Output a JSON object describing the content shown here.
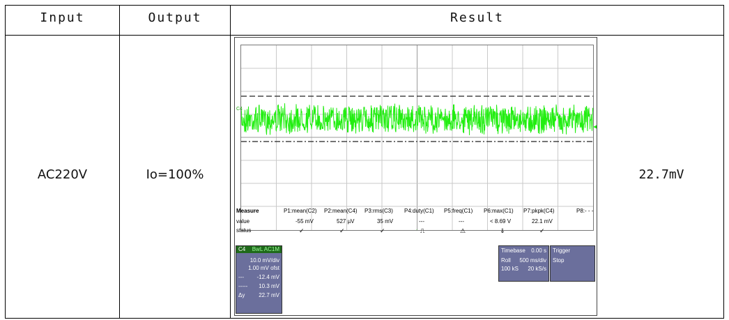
{
  "headers": {
    "input": "Input",
    "output": "Output",
    "result": "Result"
  },
  "row": {
    "input": "AC220V",
    "output": "Io=100%",
    "result": "22.7mV"
  },
  "scope": {
    "channel_tag": "C4",
    "measure": {
      "label": "Measure",
      "params": [
        "P1:mean(C2)",
        "P2:mean(C4)",
        "P3:rms(C3)",
        "P4:duty(C1)",
        "P5:freq(C1)",
        "P6:max(C1)",
        "P7:pkpk(C4)",
        "P8:- - -"
      ],
      "value_label": "value",
      "values": [
        "-55 mV",
        "527 µV",
        "35 mV",
        "---",
        "---",
        "< 8.69 V",
        "22.1 mV",
        ""
      ],
      "status_label": "status",
      "status": [
        "✓",
        "✓",
        "✓",
        "⎍",
        "⚠",
        "⇓",
        "✓",
        ""
      ]
    },
    "channel_box": {
      "ch": "C4",
      "badges": "BwL AC1M",
      "vdiv": "10.0 mV/div",
      "offset": "1.00 mV ofst",
      "cursor1_label": "---",
      "cursor1": "-12.4 mV",
      "cursor2_label": "-----",
      "cursor2": "10.3 mV",
      "dy_label": "Δy",
      "dy": "22.7 mV"
    },
    "timebase_box": {
      "title": "Timebase",
      "delay": "0.00 s",
      "mode": "Roll",
      "tdiv": "500 ms/div",
      "samples": "100 kS",
      "rate": "20 kS/s"
    },
    "trigger_box": {
      "title": "Trigger",
      "state": "Stop"
    },
    "colors": {
      "trace": "#22ee11",
      "panel": "#6b6f9c",
      "channel_panel": "#1f6a1a"
    }
  }
}
